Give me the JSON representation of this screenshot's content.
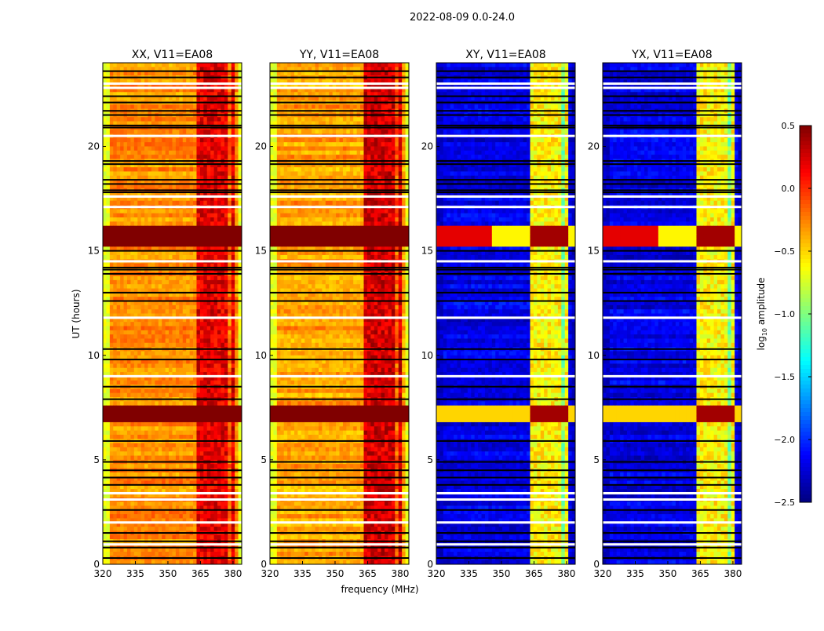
{
  "chart_data": {
    "type": "heatmap",
    "suptitle": "2022-08-09 0.0-24.0",
    "xlabel": "frequency (MHz)",
    "ylabel": "UT (hours)",
    "xlim": [
      320,
      384
    ],
    "ylim": [
      0,
      24
    ],
    "xticks": [
      320,
      335,
      350,
      365,
      380
    ],
    "yticks": [
      0,
      5,
      10,
      15,
      20
    ],
    "colorbar": {
      "label": "log10 amplitude",
      "label_main": "log",
      "label_sub": "10",
      "label_rest": " amplitude",
      "range": [
        -2.5,
        0.5
      ],
      "ticks": [
        "0.5",
        "0.0",
        "−0.5",
        "−1.0",
        "−1.5",
        "−2.0",
        "−2.5"
      ],
      "tick_values": [
        0.5,
        0.0,
        -0.5,
        -1.0,
        -1.5,
        -2.0,
        -2.5
      ],
      "colormap": "jet"
    },
    "panels": [
      {
        "title": "XX, V11=EA08",
        "baseline": -0.3,
        "edge_level": -0.7,
        "rfi_level": 0.2,
        "burst_level": 0.6,
        "burst_edge_bright": false
      },
      {
        "title": "YY, V11=EA08",
        "baseline": -0.35,
        "edge_level": -0.7,
        "rfi_level": 0.25,
        "burst_level": 0.6,
        "burst_edge_bright": false
      },
      {
        "title": "XY, V11=EA08",
        "baseline": -2.2,
        "edge_level": -2.3,
        "rfi_level": -0.6,
        "burst_level": 0.4,
        "burst_edge_bright": true
      },
      {
        "title": "YX, V11=EA08",
        "baseline": -2.2,
        "edge_level": -2.3,
        "rfi_level": -0.6,
        "burst_level": 0.4,
        "burst_edge_bright": true
      }
    ],
    "rfi_band_MHz": [
      363,
      381
    ],
    "rfi_subbands_MHz": [
      [
        363.5,
        367.5
      ],
      [
        368.5,
        372.5
      ],
      [
        373.5,
        377.5
      ],
      [
        378.5,
        381
      ]
    ],
    "burst_times_hours": [
      [
        15.3,
        16.2
      ],
      [
        6.8,
        7.6
      ]
    ],
    "flagged_rows_black_hours": [
      23.6,
      23.3,
      22.4,
      22.1,
      21.7,
      21.5,
      21.0,
      20.9,
      19.3,
      19.15,
      18.4,
      18.2,
      17.9,
      17.8,
      15.0,
      14.2,
      14.1,
      13.9,
      13.0,
      12.6,
      10.3,
      9.8,
      8.5,
      7.9,
      5.9,
      4.9,
      4.5,
      4.15,
      3.8,
      2.6,
      1.5,
      1.1,
      0.8,
      0.3
    ],
    "flagged_rows_white_hours": [
      23.0,
      22.8,
      20.5,
      17.6,
      17.1,
      14.5,
      11.8,
      9.0,
      3.4,
      3.1,
      2.0,
      0.95
    ]
  }
}
